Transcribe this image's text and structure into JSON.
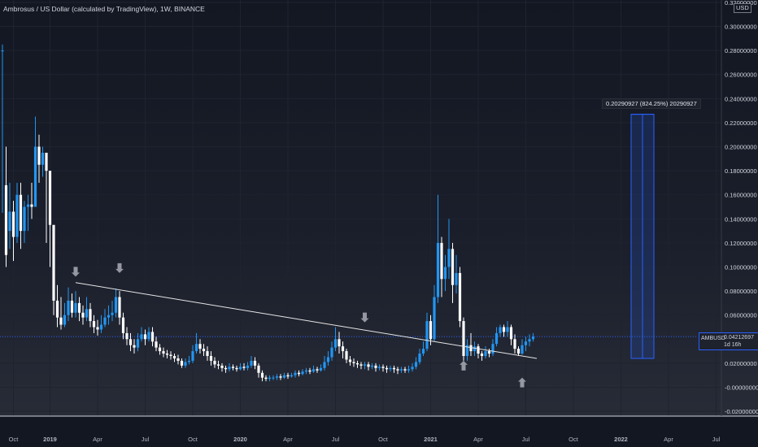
{
  "header": {
    "title": "Ambrosus / US Dollar (calculated by TradingView), 1W, BINANCE",
    "currency": "USD"
  },
  "measure": {
    "label": "0.20290927 (824.25%) 20290927",
    "from": 0.024,
    "to": 0.227
  },
  "price_tag": {
    "symbol": "AMBUSD",
    "value": "0.04212697",
    "countdown": "1d 16h"
  },
  "colors": {
    "up": "#2196f3",
    "down": "#ffffff",
    "trendline": "#e6e6e6",
    "measure": "#2962ff"
  },
  "chart_data": {
    "type": "candlestick",
    "title": "Ambrosus / US Dollar (calculated by TradingView), 1W, BINANCE",
    "ylim": [
      -0.024,
      0.322
    ],
    "y_ticks": [
      {
        "value": 0.32,
        "label": "0.32000000"
      },
      {
        "value": 0.3,
        "label": "0.30000000"
      },
      {
        "value": 0.28,
        "label": "0.28000000"
      },
      {
        "value": 0.26,
        "label": "0.26000000"
      },
      {
        "value": 0.24,
        "label": "0.24000000"
      },
      {
        "value": 0.22,
        "label": "0.22000000"
      },
      {
        "value": 0.2,
        "label": "0.20000000"
      },
      {
        "value": 0.18,
        "label": "0.18000000"
      },
      {
        "value": 0.16,
        "label": "0.16000000"
      },
      {
        "value": 0.14,
        "label": "0.14000000"
      },
      {
        "value": 0.12,
        "label": "0.12000000"
      },
      {
        "value": 0.1,
        "label": "0.10000000"
      },
      {
        "value": 0.08,
        "label": "0.08000000"
      },
      {
        "value": 0.06,
        "label": "0.06000000"
      },
      {
        "value": 0.04,
        "label": "0.04000000"
      },
      {
        "value": 0.02,
        "label": "0.02000000"
      },
      {
        "value": 0.0,
        "label": "-0.00000000"
      },
      {
        "value": -0.02,
        "label": "-0.02000000"
      }
    ],
    "x_ticks": [
      {
        "label": "Oct",
        "week": 3,
        "bold": false
      },
      {
        "label": "2019",
        "week": 13,
        "bold": true
      },
      {
        "label": "Apr",
        "week": 26,
        "bold": false
      },
      {
        "label": "Jul",
        "week": 39,
        "bold": false
      },
      {
        "label": "Oct",
        "week": 52,
        "bold": false
      },
      {
        "label": "2020",
        "week": 65,
        "bold": true
      },
      {
        "label": "Apr",
        "week": 78,
        "bold": false
      },
      {
        "label": "Jul",
        "week": 91,
        "bold": false
      },
      {
        "label": "Oct",
        "week": 104,
        "bold": false
      },
      {
        "label": "2021",
        "week": 117,
        "bold": true
      },
      {
        "label": "Apr",
        "week": 130,
        "bold": false
      },
      {
        "label": "Jul",
        "week": 143,
        "bold": false
      },
      {
        "label": "Oct",
        "week": 156,
        "bold": false
      },
      {
        "label": "2022",
        "week": 169,
        "bold": true
      },
      {
        "label": "Apr",
        "week": 182,
        "bold": false
      },
      {
        "label": "Jul",
        "week": 195,
        "bold": false
      }
    ],
    "current_price": 0.04212697,
    "trendline": [
      {
        "week": 20,
        "price": 0.087
      },
      {
        "week": 146,
        "price": 0.024
      }
    ],
    "arrows": [
      {
        "week": 20,
        "price": 0.092,
        "dir": "down"
      },
      {
        "week": 32,
        "price": 0.095,
        "dir": "down"
      },
      {
        "week": 99,
        "price": 0.054,
        "dir": "down"
      },
      {
        "week": 126,
        "price": 0.022,
        "dir": "up"
      },
      {
        "week": 142,
        "price": 0.008,
        "dir": "up"
      }
    ],
    "candles": [
      [
        0.28,
        0.28,
        0.285,
        0.145
      ],
      [
        0.168,
        0.11,
        0.2,
        0.1
      ],
      [
        0.13,
        0.146,
        0.17,
        0.115
      ],
      [
        0.146,
        0.125,
        0.155,
        0.105
      ],
      [
        0.125,
        0.16,
        0.17,
        0.12
      ],
      [
        0.16,
        0.13,
        0.17,
        0.115
      ],
      [
        0.13,
        0.15,
        0.155,
        0.12
      ],
      [
        0.15,
        0.152,
        0.16,
        0.13
      ],
      [
        0.152,
        0.15,
        0.17,
        0.14
      ],
      [
        0.15,
        0.2,
        0.225,
        0.15
      ],
      [
        0.2,
        0.185,
        0.21,
        0.17
      ],
      [
        0.185,
        0.195,
        0.2,
        0.175
      ],
      [
        0.195,
        0.18,
        0.19,
        0.12
      ],
      [
        0.18,
        0.135,
        0.145,
        0.1
      ],
      [
        0.135,
        0.072,
        0.1,
        0.06
      ],
      [
        0.072,
        0.058,
        0.085,
        0.05
      ],
      [
        0.058,
        0.052,
        0.075,
        0.048
      ],
      [
        0.052,
        0.06,
        0.07,
        0.05
      ],
      [
        0.06,
        0.072,
        0.083,
        0.055
      ],
      [
        0.072,
        0.062,
        0.078,
        0.058
      ],
      [
        0.062,
        0.07,
        0.08,
        0.058
      ],
      [
        0.07,
        0.062,
        0.075,
        0.055
      ],
      [
        0.062,
        0.058,
        0.068,
        0.052
      ],
      [
        0.058,
        0.065,
        0.075,
        0.055
      ],
      [
        0.065,
        0.055,
        0.07,
        0.05
      ],
      [
        0.055,
        0.05,
        0.06,
        0.045
      ],
      [
        0.05,
        0.048,
        0.056,
        0.043
      ],
      [
        0.048,
        0.052,
        0.06,
        0.045
      ],
      [
        0.052,
        0.058,
        0.065,
        0.05
      ],
      [
        0.058,
        0.06,
        0.068,
        0.052
      ],
      [
        0.06,
        0.062,
        0.072,
        0.055
      ],
      [
        0.062,
        0.075,
        0.082,
        0.058
      ],
      [
        0.075,
        0.058,
        0.08,
        0.052
      ],
      [
        0.058,
        0.045,
        0.062,
        0.04
      ],
      [
        0.045,
        0.04,
        0.05,
        0.035
      ],
      [
        0.04,
        0.035,
        0.045,
        0.03
      ],
      [
        0.035,
        0.033,
        0.04,
        0.028
      ],
      [
        0.033,
        0.04,
        0.045,
        0.03
      ],
      [
        0.04,
        0.044,
        0.05,
        0.038
      ],
      [
        0.044,
        0.04,
        0.048,
        0.035
      ],
      [
        0.04,
        0.046,
        0.05,
        0.038
      ],
      [
        0.046,
        0.038,
        0.05,
        0.034
      ],
      [
        0.038,
        0.033,
        0.042,
        0.03
      ],
      [
        0.033,
        0.03,
        0.036,
        0.027
      ],
      [
        0.03,
        0.028,
        0.033,
        0.025
      ],
      [
        0.028,
        0.027,
        0.031,
        0.024
      ],
      [
        0.027,
        0.026,
        0.03,
        0.023
      ],
      [
        0.026,
        0.024,
        0.028,
        0.021
      ],
      [
        0.024,
        0.022,
        0.027,
        0.019
      ],
      [
        0.022,
        0.018,
        0.024,
        0.016
      ],
      [
        0.018,
        0.021,
        0.024,
        0.016
      ],
      [
        0.021,
        0.022,
        0.026,
        0.019
      ],
      [
        0.022,
        0.03,
        0.035,
        0.02
      ],
      [
        0.03,
        0.036,
        0.045,
        0.028
      ],
      [
        0.036,
        0.032,
        0.04,
        0.028
      ],
      [
        0.032,
        0.03,
        0.036,
        0.026
      ],
      [
        0.03,
        0.026,
        0.034,
        0.022
      ],
      [
        0.026,
        0.022,
        0.03,
        0.018
      ],
      [
        0.022,
        0.019,
        0.025,
        0.016
      ],
      [
        0.019,
        0.018,
        0.022,
        0.015
      ],
      [
        0.018,
        0.016,
        0.02,
        0.013
      ],
      [
        0.016,
        0.015,
        0.018,
        0.012
      ],
      [
        0.015,
        0.017,
        0.02,
        0.013
      ],
      [
        0.017,
        0.016,
        0.019,
        0.014
      ],
      [
        0.016,
        0.015,
        0.018,
        0.013
      ],
      [
        0.015,
        0.017,
        0.02,
        0.014
      ],
      [
        0.017,
        0.016,
        0.02,
        0.014
      ],
      [
        0.016,
        0.018,
        0.021,
        0.014
      ],
      [
        0.018,
        0.022,
        0.026,
        0.016
      ],
      [
        0.022,
        0.018,
        0.025,
        0.015
      ],
      [
        0.018,
        0.012,
        0.02,
        0.008
      ],
      [
        0.012,
        0.008,
        0.014,
        0.005
      ],
      [
        0.008,
        0.007,
        0.01,
        0.005
      ],
      [
        0.007,
        0.008,
        0.01,
        0.005
      ],
      [
        0.008,
        0.008,
        0.01,
        0.006
      ],
      [
        0.008,
        0.009,
        0.011,
        0.006
      ],
      [
        0.009,
        0.008,
        0.011,
        0.006
      ],
      [
        0.008,
        0.01,
        0.012,
        0.007
      ],
      [
        0.01,
        0.009,
        0.012,
        0.007
      ],
      [
        0.009,
        0.01,
        0.012,
        0.008
      ],
      [
        0.01,
        0.012,
        0.014,
        0.008
      ],
      [
        0.012,
        0.011,
        0.014,
        0.009
      ],
      [
        0.011,
        0.013,
        0.015,
        0.01
      ],
      [
        0.013,
        0.014,
        0.016,
        0.011
      ],
      [
        0.014,
        0.013,
        0.016,
        0.011
      ],
      [
        0.013,
        0.015,
        0.018,
        0.012
      ],
      [
        0.015,
        0.014,
        0.017,
        0.012
      ],
      [
        0.014,
        0.016,
        0.019,
        0.013
      ],
      [
        0.016,
        0.021,
        0.026,
        0.014
      ],
      [
        0.021,
        0.025,
        0.03,
        0.018
      ],
      [
        0.025,
        0.033,
        0.038,
        0.022
      ],
      [
        0.033,
        0.04,
        0.05,
        0.03
      ],
      [
        0.04,
        0.034,
        0.046,
        0.028
      ],
      [
        0.034,
        0.03,
        0.038,
        0.024
      ],
      [
        0.03,
        0.023,
        0.032,
        0.02
      ],
      [
        0.023,
        0.021,
        0.026,
        0.018
      ],
      [
        0.021,
        0.02,
        0.024,
        0.017
      ],
      [
        0.02,
        0.019,
        0.022,
        0.016
      ],
      [
        0.019,
        0.018,
        0.021,
        0.015
      ],
      [
        0.018,
        0.019,
        0.021,
        0.015
      ],
      [
        0.019,
        0.017,
        0.021,
        0.014
      ],
      [
        0.017,
        0.018,
        0.02,
        0.015
      ],
      [
        0.018,
        0.016,
        0.02,
        0.013
      ],
      [
        0.016,
        0.017,
        0.019,
        0.014
      ],
      [
        0.017,
        0.016,
        0.019,
        0.013
      ],
      [
        0.016,
        0.015,
        0.018,
        0.012
      ],
      [
        0.015,
        0.016,
        0.018,
        0.013
      ],
      [
        0.016,
        0.015,
        0.018,
        0.012
      ],
      [
        0.015,
        0.014,
        0.017,
        0.011
      ],
      [
        0.014,
        0.015,
        0.017,
        0.012
      ],
      [
        0.015,
        0.014,
        0.017,
        0.012
      ],
      [
        0.014,
        0.015,
        0.018,
        0.012
      ],
      [
        0.015,
        0.017,
        0.02,
        0.013
      ],
      [
        0.017,
        0.021,
        0.025,
        0.015
      ],
      [
        0.021,
        0.028,
        0.032,
        0.019
      ],
      [
        0.028,
        0.032,
        0.038,
        0.026
      ],
      [
        0.032,
        0.055,
        0.062,
        0.03
      ],
      [
        0.055,
        0.04,
        0.06,
        0.035
      ],
      [
        0.04,
        0.075,
        0.085,
        0.038
      ],
      [
        0.075,
        0.12,
        0.16,
        0.07
      ],
      [
        0.12,
        0.09,
        0.125,
        0.075
      ],
      [
        0.09,
        0.1,
        0.11,
        0.08
      ],
      [
        0.1,
        0.115,
        0.14,
        0.09
      ],
      [
        0.115,
        0.085,
        0.12,
        0.07
      ],
      [
        0.085,
        0.095,
        0.11,
        0.078
      ],
      [
        0.095,
        0.055,
        0.1,
        0.05
      ],
      [
        0.055,
        0.026,
        0.058,
        0.022
      ],
      [
        0.026,
        0.035,
        0.04,
        0.022
      ],
      [
        0.035,
        0.03,
        0.045,
        0.026
      ],
      [
        0.03,
        0.034,
        0.038,
        0.026
      ],
      [
        0.034,
        0.028,
        0.036,
        0.024
      ],
      [
        0.028,
        0.026,
        0.03,
        0.022
      ],
      [
        0.026,
        0.03,
        0.034,
        0.024
      ],
      [
        0.03,
        0.028,
        0.032,
        0.025
      ],
      [
        0.028,
        0.036,
        0.04,
        0.026
      ],
      [
        0.036,
        0.045,
        0.05,
        0.034
      ],
      [
        0.045,
        0.05,
        0.052,
        0.042
      ],
      [
        0.05,
        0.046,
        0.052,
        0.042
      ],
      [
        0.046,
        0.05,
        0.055,
        0.042
      ],
      [
        0.05,
        0.04,
        0.052,
        0.035
      ],
      [
        0.04,
        0.032,
        0.044,
        0.028
      ],
      [
        0.032,
        0.028,
        0.034,
        0.026
      ],
      [
        0.028,
        0.035,
        0.04,
        0.027
      ],
      [
        0.035,
        0.038,
        0.042,
        0.03
      ],
      [
        0.038,
        0.04,
        0.044,
        0.034
      ],
      [
        0.04,
        0.042,
        0.045,
        0.038
      ]
    ]
  }
}
